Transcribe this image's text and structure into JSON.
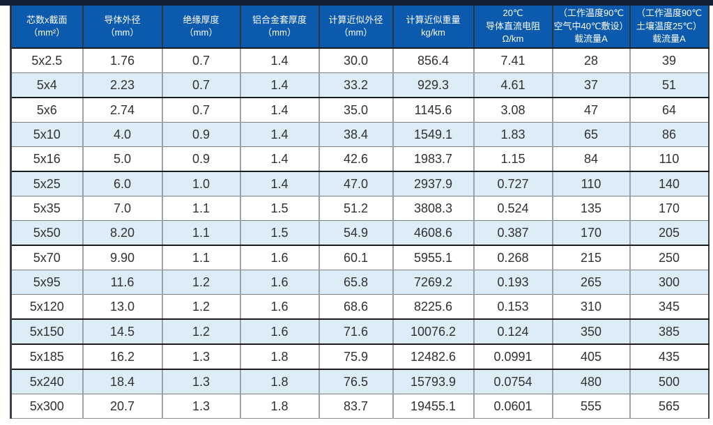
{
  "colors": {
    "top_bar": "#131f33",
    "header_background": "#0b5aad",
    "header_text": "#ffffff",
    "alt_row_background": "#ddedf8",
    "body_text": "#313131"
  },
  "table": {
    "headers": [
      {
        "lines": [
          "芯数x截面",
          "（mm²）"
        ]
      },
      {
        "lines": [
          "导体外径",
          "（mm）"
        ]
      },
      {
        "lines": [
          "绝缘厚度",
          "（mm）"
        ]
      },
      {
        "lines": [
          "铝合金套厚度",
          "（mm）"
        ]
      },
      {
        "lines": [
          "计算近似外径",
          "（mm）"
        ]
      },
      {
        "lines": [
          "计算近似重量",
          "kg/km"
        ]
      },
      {
        "lines": [
          "20℃",
          "导体直流电阻",
          "Ω/km"
        ]
      },
      {
        "lines": [
          "（工作温度90℃",
          "空气中40℃敷设）",
          "载流量A"
        ]
      },
      {
        "lines": [
          "（工作温度90℃",
          "土壤温度25℃）",
          "载流量A"
        ]
      }
    ],
    "rows": [
      {
        "cells": [
          "5x2.5",
          "1.76",
          "0.7",
          "1.4",
          "30.0",
          "856.4",
          "7.41",
          "28",
          "39"
        ],
        "divider": false
      },
      {
        "cells": [
          "5x4",
          "2.23",
          "0.7",
          "1.4",
          "33.2",
          "929.3",
          "4.61",
          "37",
          "51"
        ],
        "divider": true
      },
      {
        "cells": [
          "5x6",
          "2.74",
          "0.7",
          "1.4",
          "35.0",
          "1145.6",
          "3.08",
          "47",
          "64"
        ],
        "divider": false
      },
      {
        "cells": [
          "5x10",
          "4.0",
          "0.9",
          "1.4",
          "38.4",
          "1549.1",
          "1.83",
          "65",
          "86"
        ],
        "divider": false
      },
      {
        "cells": [
          "5x16",
          "5.0",
          "0.9",
          "1.4",
          "42.6",
          "1983.7",
          "1.15",
          "84",
          "110"
        ],
        "divider": true
      },
      {
        "cells": [
          "5x25",
          "6.0",
          "1.0",
          "1.4",
          "47.0",
          "2937.9",
          "0.727",
          "110",
          "140"
        ],
        "divider": false
      },
      {
        "cells": [
          "5x35",
          "7.0",
          "1.1",
          "1.5",
          "51.2",
          "3808.3",
          "0.524",
          "135",
          "170"
        ],
        "divider": false
      },
      {
        "cells": [
          "5x50",
          "8.20",
          "1.1",
          "1.5",
          "54.9",
          "4608.6",
          "0.387",
          "170",
          "205"
        ],
        "divider": true
      },
      {
        "cells": [
          "5x70",
          "9.90",
          "1.1",
          "1.6",
          "60.1",
          "5955.1",
          "0.268",
          "215",
          "250"
        ],
        "divider": false
      },
      {
        "cells": [
          "5x95",
          "11.6",
          "1.2",
          "1.6",
          "65.8",
          "7269.2",
          "0.193",
          "265",
          "300"
        ],
        "divider": false
      },
      {
        "cells": [
          "5x120",
          "13.0",
          "1.2",
          "1.6",
          "68.6",
          "8225.6",
          "0.153",
          "310",
          "345"
        ],
        "divider": true
      },
      {
        "cells": [
          "5x150",
          "14.5",
          "1.2",
          "1.6",
          "71.6",
          "10076.2",
          "0.124",
          "350",
          "385"
        ],
        "divider": true
      },
      {
        "cells": [
          "5x185",
          "16.2",
          "1.3",
          "1.8",
          "75.9",
          "12482.6",
          "0.0991",
          "405",
          "435"
        ],
        "divider": true
      },
      {
        "cells": [
          "5x240",
          "18.4",
          "1.3",
          "1.8",
          "76.5",
          "15793.9",
          "0.0754",
          "480",
          "500"
        ],
        "divider": false
      },
      {
        "cells": [
          "5x300",
          "20.7",
          "1.3",
          "1.8",
          "83.7",
          "19455.1",
          "0.0601",
          "555",
          "565"
        ],
        "divider": false
      }
    ]
  }
}
